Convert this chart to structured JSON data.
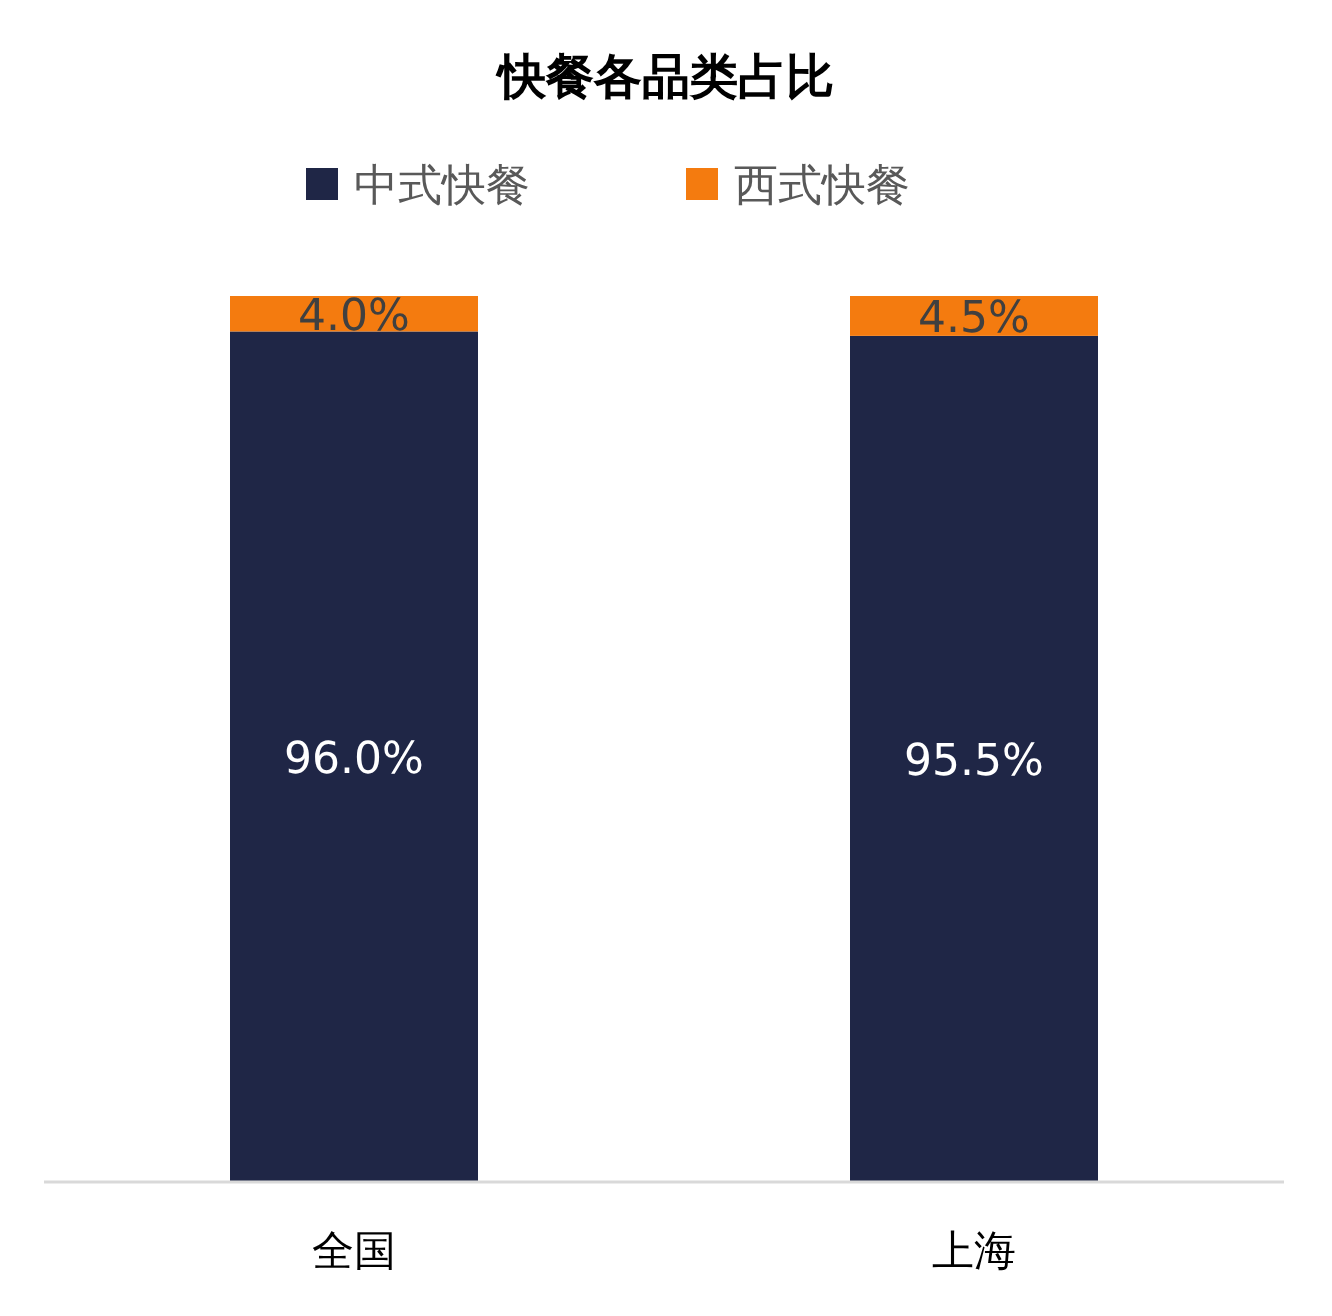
{
  "chart_data": {
    "type": "bar",
    "title": "快餐各品类占比",
    "categories": [
      "全国",
      "上海"
    ],
    "stacked": true,
    "legend": "top",
    "grid": false,
    "series": [
      {
        "name": "中式快餐",
        "color": "#1f2646",
        "values": [
          96.0,
          95.5
        ],
        "value_labels": [
          "96.0%",
          "95.5%"
        ]
      },
      {
        "name": "西式快餐",
        "color": "#f47b0f",
        "values": [
          4.0,
          4.5
        ],
        "value_labels": [
          "4.0%",
          "4.5%"
        ]
      }
    ]
  }
}
